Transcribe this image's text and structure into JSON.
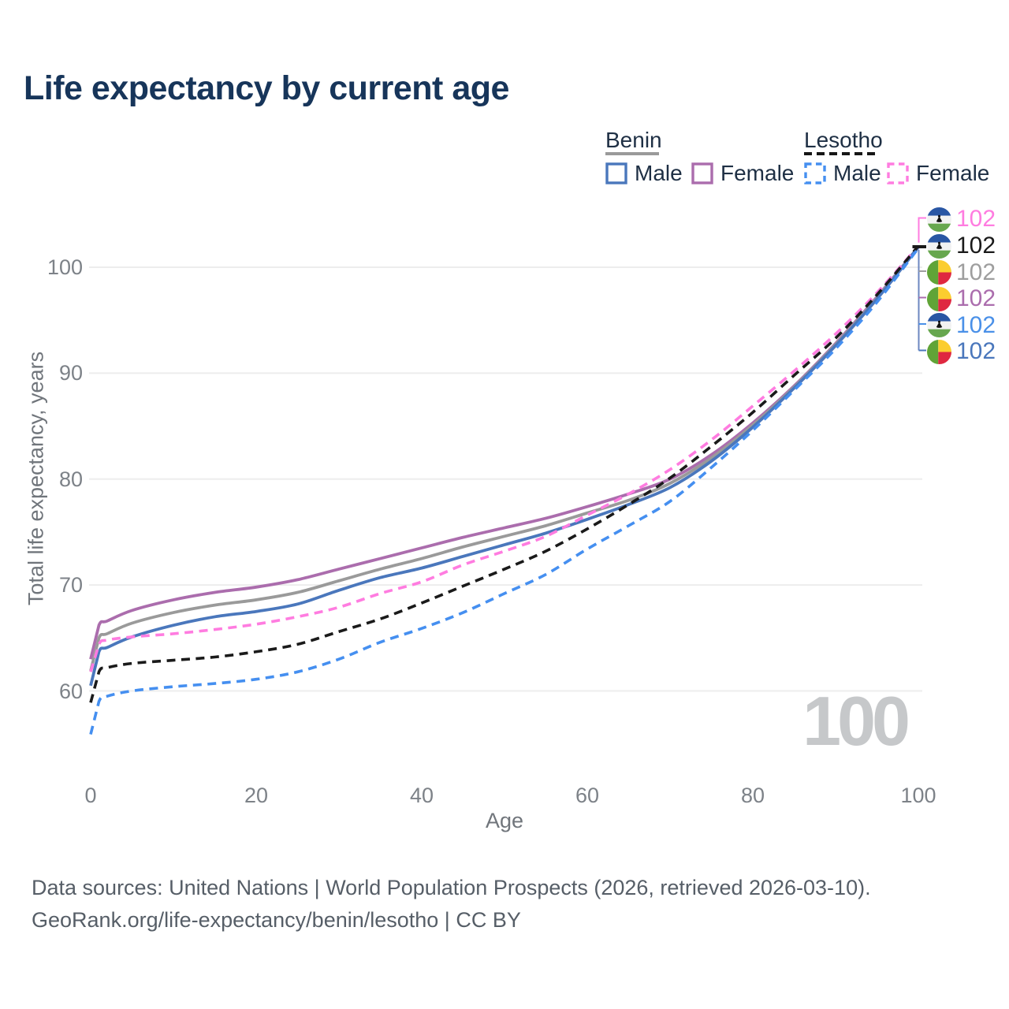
{
  "title": "Life expectancy by current age",
  "legend": {
    "groups": [
      {
        "country": "Benin",
        "underline_style": "solid",
        "underline_color": "#9a9a9a",
        "items": [
          {
            "label": "Male",
            "color": "#4a77bc",
            "dashed": false
          },
          {
            "label": "Female",
            "color": "#ab6dad",
            "dashed": false
          }
        ]
      },
      {
        "country": "Lesotho",
        "underline_style": "dashed",
        "underline_color": "#161616",
        "items": [
          {
            "label": "Male",
            "color": "#458ff0",
            "dashed": true
          },
          {
            "label": "Female",
            "color": "#ff7ce0",
            "dashed": true
          }
        ]
      }
    ]
  },
  "y_axis": {
    "title": "Total life expectancy, years",
    "ticks": [
      100,
      90,
      80,
      70,
      60
    ]
  },
  "x_axis": {
    "title": "Age",
    "ticks": [
      0,
      20,
      40,
      60,
      80,
      100
    ]
  },
  "watermark_age": "100",
  "endpoint_labels": [
    {
      "flag": "lesotho",
      "series": "Lesotho Female",
      "value": "102",
      "color": "#ff7ce0"
    },
    {
      "flag": "lesotho",
      "series": "Lesotho",
      "value": "102",
      "color": "#1a1a1a"
    },
    {
      "flag": "benin",
      "series": "Benin",
      "value": "102",
      "color": "#9e9e9e"
    },
    {
      "flag": "benin",
      "series": "Benin Female",
      "value": "102",
      "color": "#ab6dad"
    },
    {
      "flag": "lesotho",
      "series": "Lesotho Male",
      "value": "102",
      "color": "#4a90e8"
    },
    {
      "flag": "benin",
      "series": "Benin Male",
      "value": "102",
      "color": "#4a77bc"
    }
  ],
  "footer": {
    "line1": "Data sources: United Nations | World Population Prospects (2026, retrieved 2026-03-10).",
    "line2": "GeoRank.org/life-expectancy/benin/lesotho | CC BY"
  },
  "flag_colors": {
    "lesotho": {
      "blue": "#2956a4",
      "white": "#f2f2f2",
      "green": "#67a74e",
      "hat": "#111111"
    },
    "benin": {
      "green": "#60a437",
      "yellow": "#fbcd2f",
      "red": "#df2840"
    }
  },
  "chart_data": {
    "type": "line",
    "title": "Life expectancy by current age",
    "xlabel": "Age",
    "ylabel": "Total life expectancy, years",
    "xlim": [
      0,
      100
    ],
    "ylim": [
      55,
      104
    ],
    "grid": "horizontal",
    "legend_position": "top-right",
    "x": [
      0,
      1,
      2,
      5,
      10,
      15,
      20,
      25,
      30,
      35,
      40,
      45,
      50,
      55,
      60,
      65,
      70,
      75,
      80,
      85,
      90,
      95,
      100
    ],
    "series": [
      {
        "name": "Benin Female",
        "style": "solid",
        "color": "#ab6dad",
        "values": [
          63.0,
          66.2,
          66.6,
          67.6,
          68.6,
          69.3,
          69.8,
          70.5,
          71.5,
          72.5,
          73.5,
          74.5,
          75.4,
          76.3,
          77.4,
          78.6,
          80.0,
          82.3,
          85.3,
          88.8,
          92.8,
          97.2,
          101.9
        ]
      },
      {
        "name": "Benin",
        "style": "solid",
        "color": "#9a9a9a",
        "values": [
          61.9,
          65.0,
          65.4,
          66.4,
          67.4,
          68.1,
          68.6,
          69.3,
          70.4,
          71.5,
          72.5,
          73.6,
          74.6,
          75.6,
          76.8,
          78.0,
          79.6,
          82.0,
          85.1,
          88.7,
          92.7,
          97.1,
          101.9
        ]
      },
      {
        "name": "Benin Male",
        "style": "solid",
        "color": "#4a77bc",
        "values": [
          60.5,
          63.7,
          64.1,
          65.1,
          66.2,
          67.0,
          67.5,
          68.2,
          69.5,
          70.7,
          71.6,
          72.7,
          73.8,
          74.9,
          76.2,
          77.6,
          79.2,
          81.7,
          84.9,
          88.6,
          92.6,
          97.0,
          101.9
        ]
      },
      {
        "name": "Lesotho Female",
        "style": "dashed",
        "color": "#ff7ce0",
        "values": [
          61.8,
          64.4,
          64.8,
          65.1,
          65.4,
          65.8,
          66.3,
          67.0,
          67.9,
          69.2,
          70.3,
          71.9,
          73.2,
          74.6,
          76.6,
          78.6,
          80.9,
          83.7,
          86.9,
          90.2,
          93.7,
          97.6,
          102.0
        ]
      },
      {
        "name": "Lesotho",
        "style": "dashed",
        "color": "#1a1a1a",
        "values": [
          58.9,
          61.8,
          62.2,
          62.6,
          62.9,
          63.2,
          63.7,
          64.4,
          65.6,
          66.8,
          68.3,
          69.9,
          71.5,
          73.2,
          75.3,
          77.6,
          80.1,
          83.1,
          86.3,
          89.8,
          93.3,
          97.4,
          102.0
        ]
      },
      {
        "name": "Lesotho Male",
        "style": "dashed",
        "color": "#458ff0",
        "values": [
          55.9,
          59.0,
          59.5,
          60.0,
          60.4,
          60.7,
          61.1,
          61.8,
          63.0,
          64.6,
          65.9,
          67.4,
          69.2,
          71.0,
          73.4,
          75.6,
          77.9,
          81.1,
          84.6,
          88.4,
          92.3,
          96.7,
          101.8
        ]
      }
    ]
  }
}
